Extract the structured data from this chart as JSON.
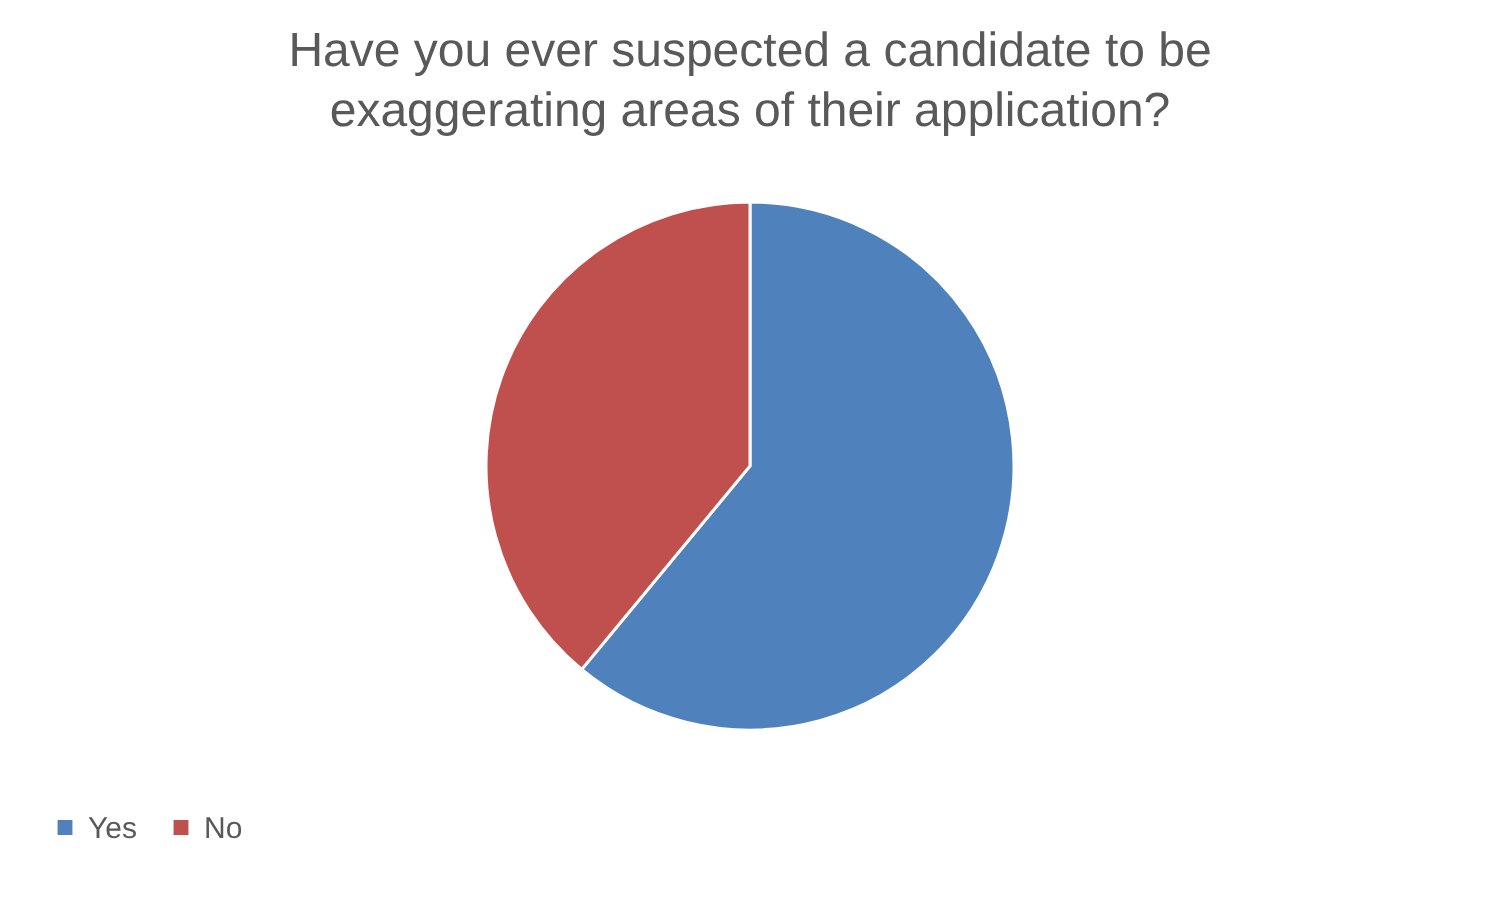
{
  "chart_data": {
    "type": "pie",
    "title": "Have you ever suspected  a candidate to be exaggerating areas of their application?",
    "categories": [
      "Yes",
      "No"
    ],
    "values": [
      61,
      39
    ],
    "colors": [
      "#4f81bd",
      "#c0504d"
    ],
    "legend": "bottom"
  }
}
